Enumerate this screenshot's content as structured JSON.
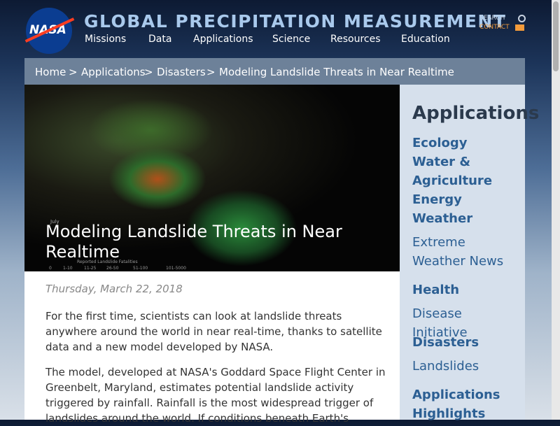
{
  "header": {
    "logo": "NASA",
    "title": "GLOBAL PRECIPITATION MEASUREMENT",
    "nav": [
      "Missions",
      "Data",
      "Applications",
      "Science",
      "Resources",
      "Education"
    ],
    "utility": [
      "SEARCH",
      "CONTACT"
    ]
  },
  "breadcrumb": [
    "Home",
    ">",
    "Applications",
    ">",
    "Disasters",
    ">",
    "Modeling Landslide Threats in Near Realtime"
  ],
  "hero": {
    "title": "Modeling Landslide Threats in Near Realtime",
    "map_label": "July",
    "legend_title": "Reported Landslide Fatalities",
    "legend": [
      "0",
      "1-10",
      "11-25",
      "26-50",
      "51-100",
      "101-5000"
    ]
  },
  "article": {
    "date": "Thursday, March 22, 2018",
    "paragraphs": [
      "For the first time, scientists can look at landslide threats anywhere around the world in near real-time, thanks to satellite data and a new model developed by NASA.",
      "The model, developed at NASA's Goddard Space Flight Center in Greenbelt, Maryland, estimates potential landslide activity triggered by rainfall. Rainfall is the most widespread trigger of landslides around the world. If conditions beneath Earth's"
    ]
  },
  "sidebar": {
    "title": "Applications",
    "links": [
      "Ecology",
      "Water & Agriculture",
      "Energy",
      "Weather",
      "Extreme Weather News",
      "Health",
      "Disease Initiative",
      "Disasters",
      "Landslides",
      "Applications Highlights"
    ]
  }
}
